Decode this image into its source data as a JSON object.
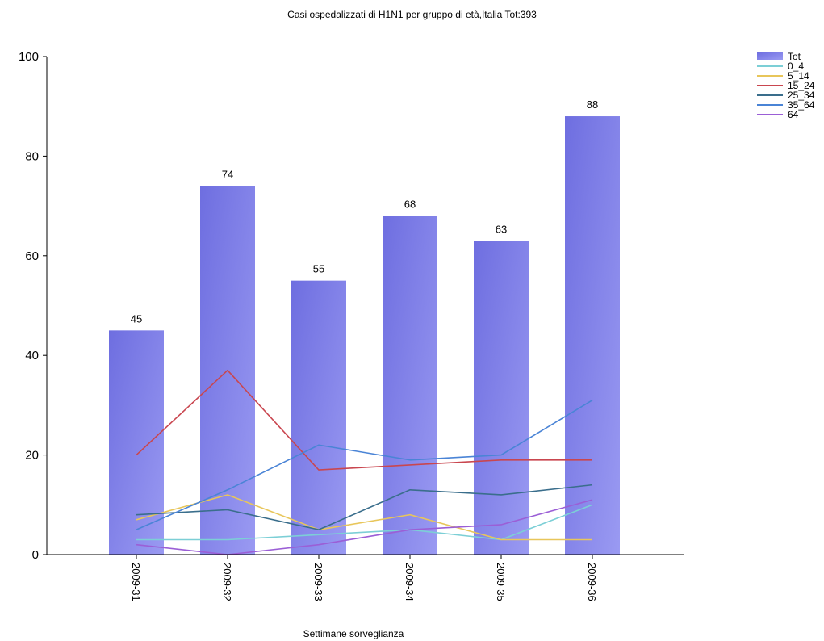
{
  "chart_data": {
    "type": "bar",
    "title": "Casi ospedalizzati di H1N1 per gruppo di età,Italia Tot:393",
    "xlabel": "Settimane sorveglianza",
    "ylabel": "",
    "ylim": [
      0,
      100
    ],
    "yticks": [
      "0",
      "20",
      "40",
      "60",
      "80",
      "100"
    ],
    "grid": false,
    "legend_position": "top-right",
    "categories": [
      "2009-31",
      "2009-32",
      "2009-33",
      "2009-34",
      "2009-35",
      "2009-36"
    ],
    "bar_series": {
      "name": "Tot",
      "values": [
        45,
        74,
        55,
        68,
        63,
        88
      ],
      "color": "#7b7be6"
    },
    "line_series": [
      {
        "name": "0_4",
        "values": [
          3,
          3,
          4,
          5,
          3,
          10
        ],
        "color": "#7ccfd6"
      },
      {
        "name": "5_14",
        "values": [
          7,
          12,
          5,
          8,
          3,
          3
        ],
        "color": "#e8c65a"
      },
      {
        "name": "15_24",
        "values": [
          20,
          37,
          17,
          18,
          19,
          19
        ],
        "color": "#c9464f"
      },
      {
        "name": "25_34",
        "values": [
          8,
          9,
          5,
          13,
          12,
          14
        ],
        "color": "#3a6e8c"
      },
      {
        "name": "35_64",
        "values": [
          5,
          13,
          22,
          19,
          20,
          31
        ],
        "color": "#4a84d6"
      },
      {
        "name": "64",
        "values": [
          2,
          0,
          2,
          5,
          6,
          11
        ],
        "color": "#9b5fd6"
      }
    ]
  }
}
